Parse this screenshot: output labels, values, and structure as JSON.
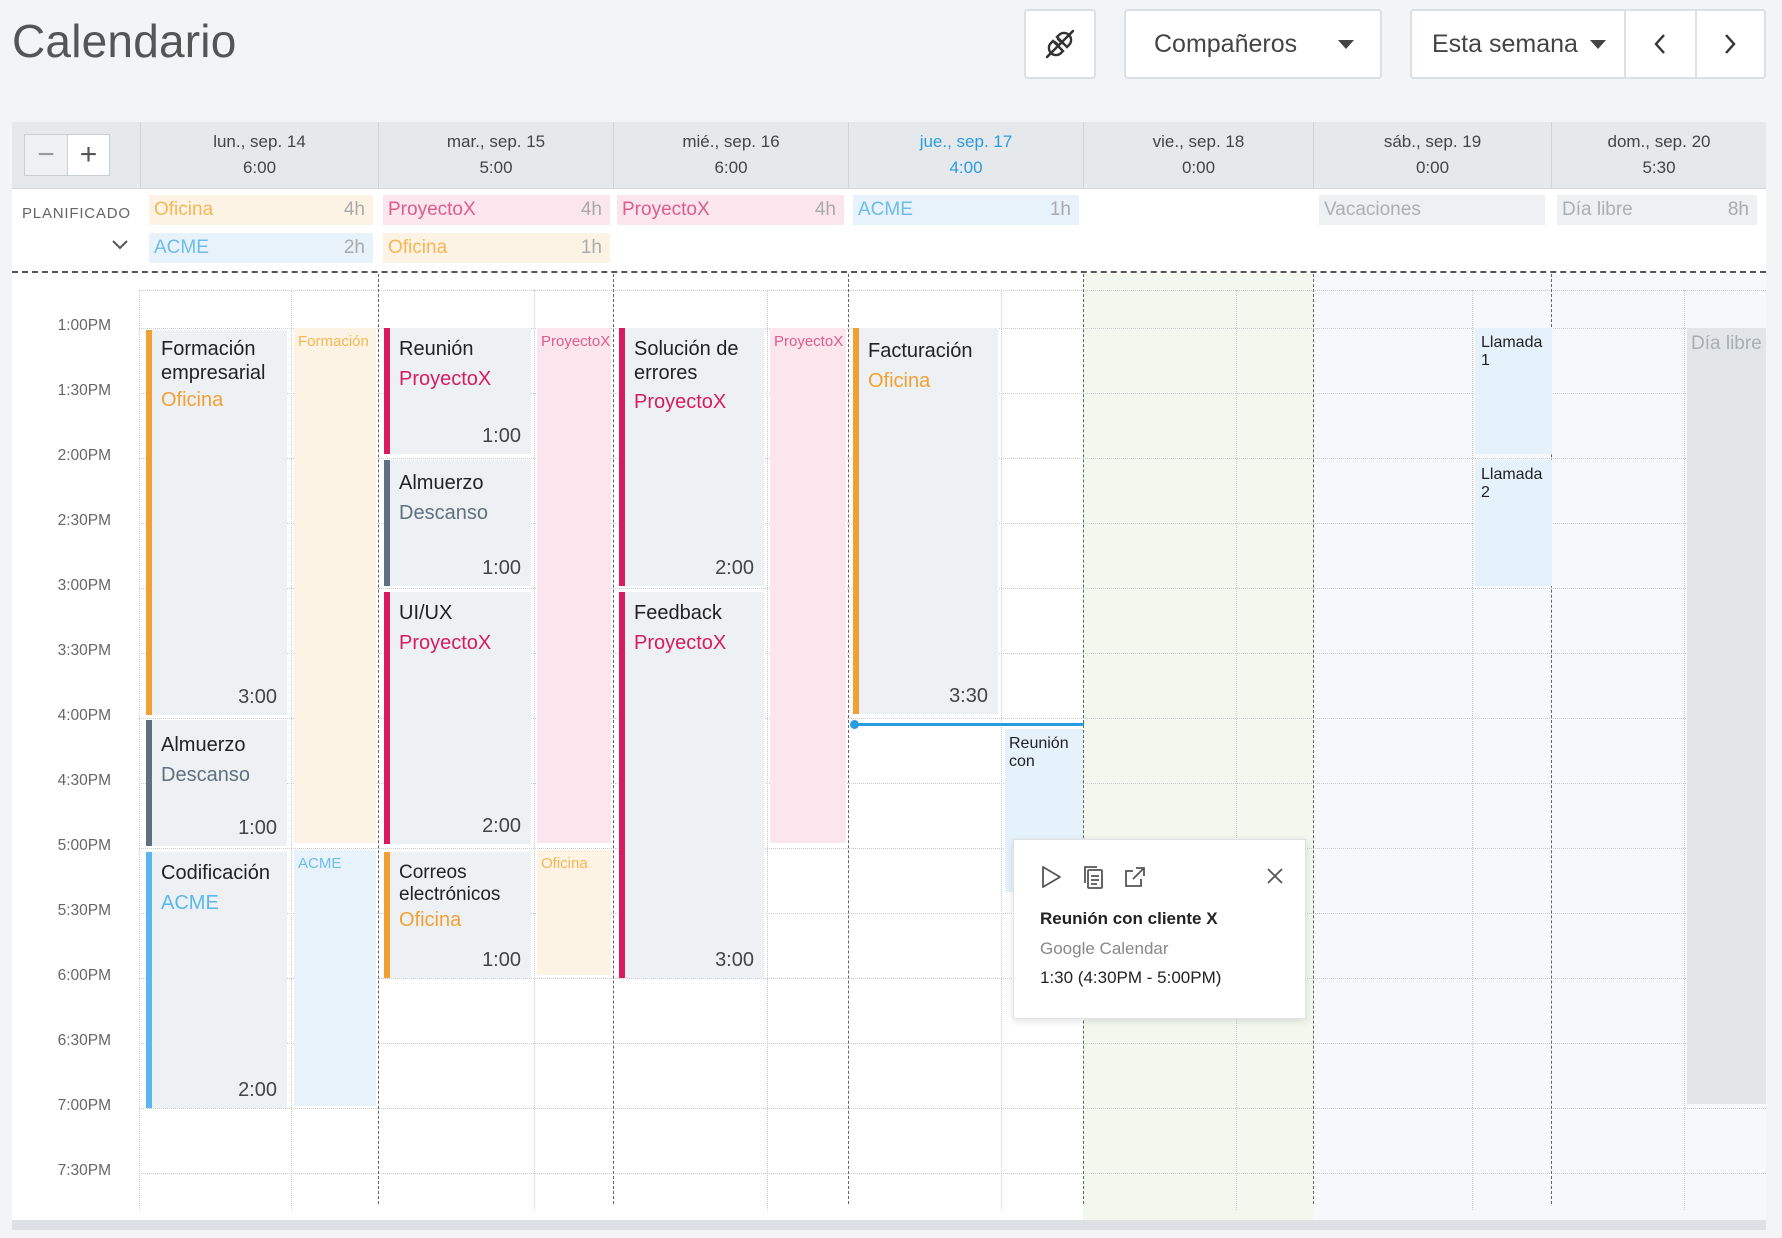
{
  "header": {
    "title": "Calendario",
    "team_dropdown": "Compañeros",
    "range_dropdown": "Esta semana"
  },
  "colors": {
    "office": "#f2a033",
    "acme": "#5ab7ee",
    "proyectox": "#d81b60",
    "break": "#607080",
    "today": "#2b9be0"
  },
  "zoom": {
    "minus": "−",
    "plus": "+"
  },
  "days": [
    {
      "date": "lun., sep. 14",
      "total": "6:00"
    },
    {
      "date": "mar., sep. 15",
      "total": "5:00"
    },
    {
      "date": "mié., sep. 16",
      "total": "6:00"
    },
    {
      "date": "jue., sep. 17",
      "total": "4:00"
    },
    {
      "date": "vie., sep. 18",
      "total": "0:00"
    },
    {
      "date": "sáb., sep. 19",
      "total": "0:00"
    },
    {
      "date": "dom., sep. 20",
      "total": "5:30"
    }
  ],
  "planned": {
    "label": "PLANIFICADO",
    "chips": [
      {
        "name": "Oficina",
        "hours": "4h"
      },
      {
        "name": "ACME",
        "hours": "2h"
      },
      {
        "name": "ProyectoX",
        "hours": "4h"
      },
      {
        "name": "Oficina",
        "hours": "1h"
      },
      {
        "name": "ProyectoX",
        "hours": "4h"
      },
      {
        "name": "ACME",
        "hours": "1h"
      },
      {
        "name": "Vacaciones",
        "hours": ""
      },
      {
        "name": "Día libre",
        "hours": "8h"
      }
    ]
  },
  "times": [
    "1:00PM",
    "1:30PM",
    "2:00PM",
    "2:30PM",
    "3:00PM",
    "3:30PM",
    "4:00PM",
    "4:30PM",
    "5:00PM",
    "5:30PM",
    "6:00PM",
    "6:30PM",
    "7:00PM",
    "7:30PM"
  ],
  "events": [
    {
      "title": "Formación empresarial",
      "project": "Oficina",
      "duration": "3:00"
    },
    {
      "title": "Almuerzo",
      "project": "Descanso",
      "duration": "1:00"
    },
    {
      "title": "Codificación",
      "project": "ACME",
      "duration": "2:00"
    },
    {
      "title": "Reunión",
      "project": "ProyectoX",
      "duration": "1:00"
    },
    {
      "title": "Almuerzo",
      "project": "Descanso",
      "duration": "1:00"
    },
    {
      "title": "UI/UX",
      "project": "ProyectoX",
      "duration": "2:00"
    },
    {
      "title": "Correos electrónicos",
      "project": "Oficina",
      "duration": "1:00"
    },
    {
      "title": "Solución de errores",
      "project": "ProyectoX",
      "duration": "2:00"
    },
    {
      "title": "Feedback",
      "project": "ProyectoX",
      "duration": "3:00"
    },
    {
      "title": "Facturación",
      "project": "Oficina",
      "duration": "3:30"
    }
  ],
  "ghosts": [
    "Formación",
    "ACME",
    "ProyectoX",
    "Oficina",
    "ProyectoX",
    "Día libre"
  ],
  "small_events": [
    "Reunión con",
    "Llamada 1",
    "Llamada 2"
  ],
  "popup": {
    "title": "Reunión con cliente X",
    "source": "Google Calendar",
    "time": "1:30 (4:30PM - 5:00PM)"
  }
}
